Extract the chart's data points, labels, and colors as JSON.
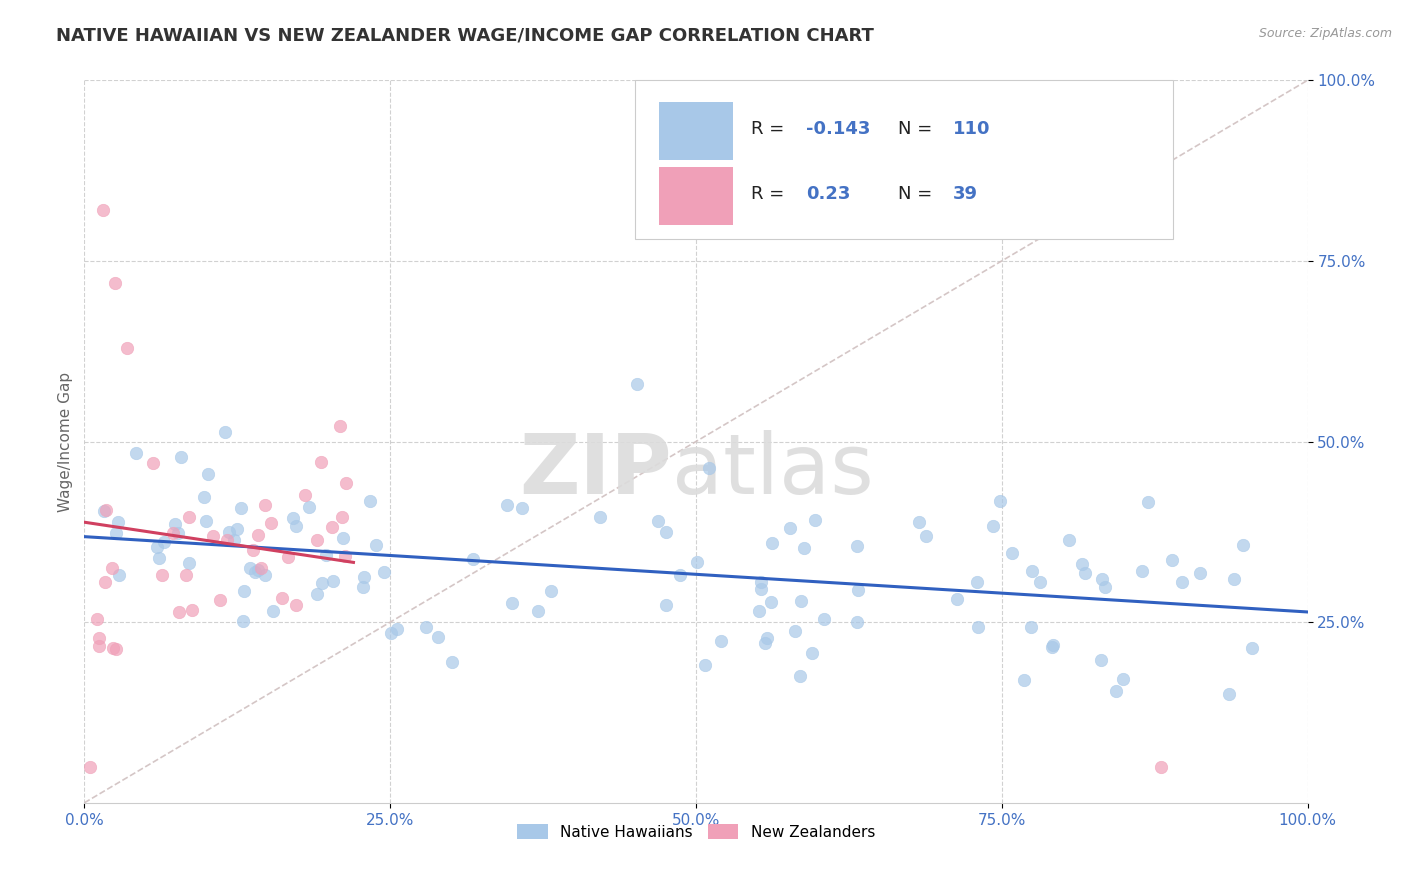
{
  "title": "NATIVE HAWAIIAN VS NEW ZEALANDER WAGE/INCOME GAP CORRELATION CHART",
  "source": "Source: ZipAtlas.com",
  "ylabel": "Wage/Income Gap",
  "xlim": [
    0.0,
    1.0
  ],
  "ylim": [
    0.0,
    1.0
  ],
  "xtick_labels": [
    "0.0%",
    "25.0%",
    "50.0%",
    "75.0%",
    "100.0%"
  ],
  "xtick_vals": [
    0.0,
    0.25,
    0.5,
    0.75,
    1.0
  ],
  "ytick_labels": [
    "25.0%",
    "50.0%",
    "75.0%",
    "100.0%"
  ],
  "ytick_vals": [
    0.25,
    0.5,
    0.75,
    1.0
  ],
  "blue_color": "#A8C8E8",
  "pink_color": "#F0A0B8",
  "blue_line_color": "#3060C0",
  "pink_line_color": "#D04060",
  "diagonal_color": "#D0C0C0",
  "R_blue": -0.143,
  "N_blue": 110,
  "R_pink": 0.23,
  "N_pink": 39,
  "legend_label_blue": "Native Hawaiians",
  "legend_label_pink": "New Zealanders",
  "watermark_zip": "ZIP",
  "watermark_atlas": "atlas",
  "background_color": "#FFFFFF",
  "grid_color": "#CCCCCC"
}
